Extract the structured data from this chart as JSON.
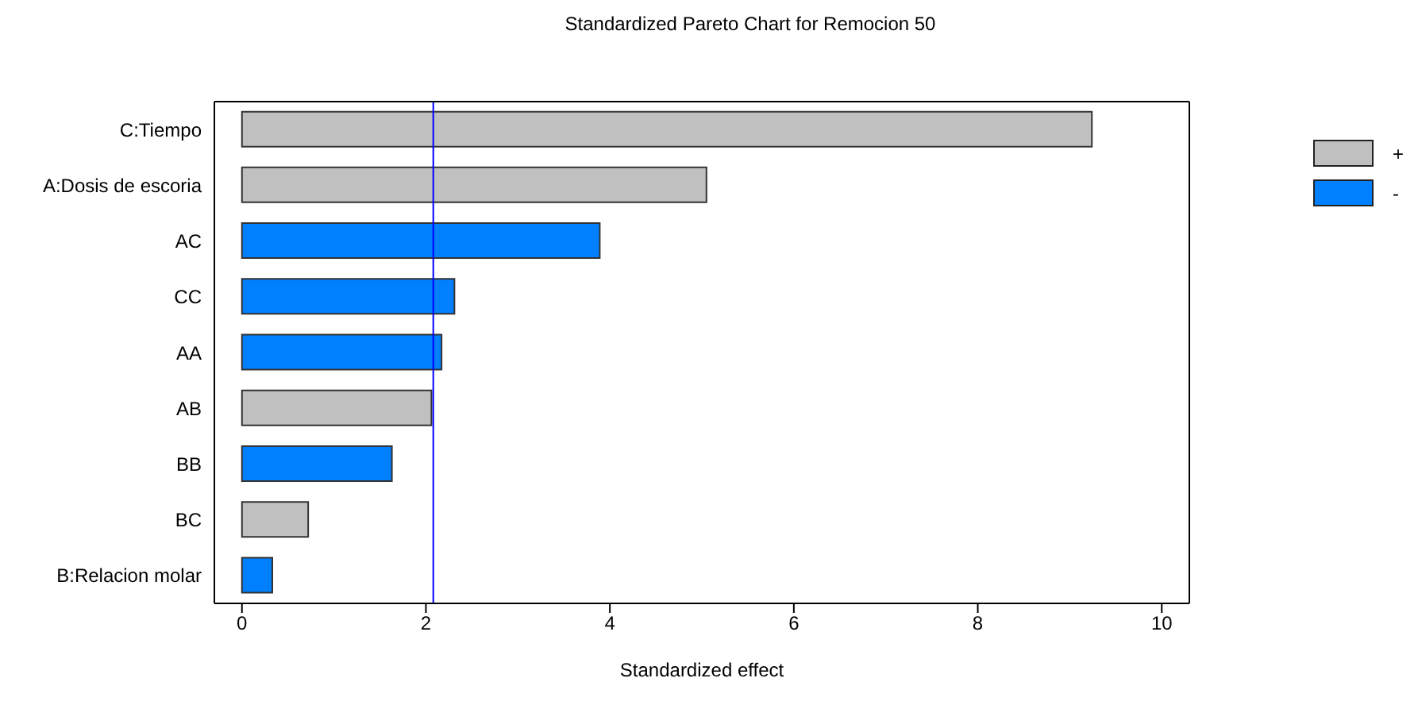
{
  "chart_data": {
    "type": "bar",
    "orientation": "horizontal",
    "stacked": true,
    "title": "Standardized Pareto Chart for Remocion 50",
    "xlabel": "Standardized effect",
    "categories": [
      "C:Tiempo",
      "A:Dosis de escoria",
      "AC",
      "CC",
      "AA",
      "AB",
      "BB",
      "BC",
      "B:Relacion molar"
    ],
    "series": [
      {
        "name": "+",
        "color": "#c0c0c0",
        "values": [
          9.24,
          5.05,
          null,
          null,
          null,
          2.06,
          null,
          0.72,
          null
        ]
      },
      {
        "name": "-",
        "color": "#0080ff",
        "values": [
          null,
          null,
          3.89,
          2.31,
          2.17,
          null,
          1.63,
          null,
          0.33
        ]
      }
    ],
    "xlim": [
      -0.3,
      10.3
    ],
    "xticks": [
      0,
      2,
      4,
      6,
      8,
      10
    ],
    "ref_lines": [
      {
        "axis": "x",
        "value": 2.08,
        "color": "#0000ff"
      }
    ],
    "legend": "right",
    "grid": false
  }
}
